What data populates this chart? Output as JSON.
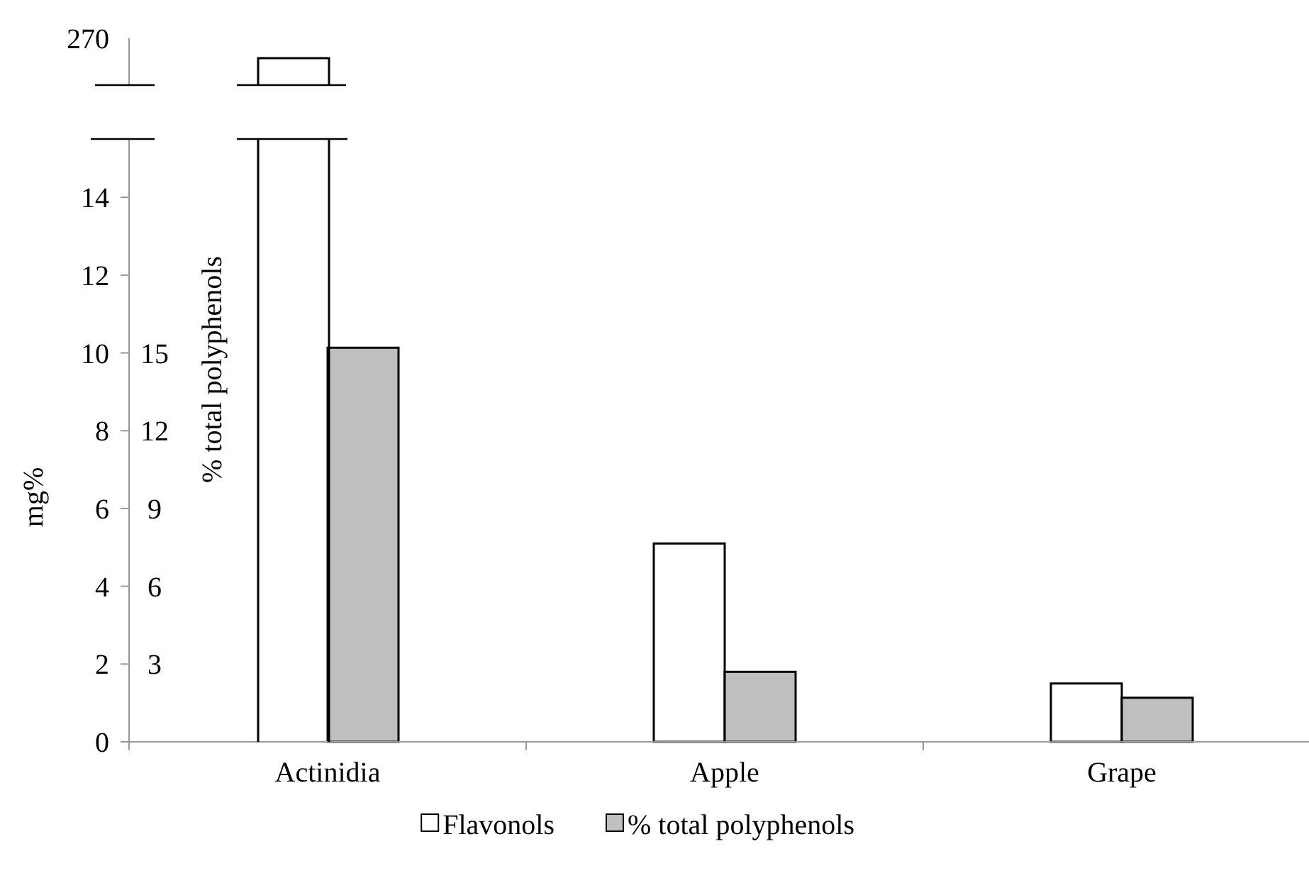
{
  "chart_data": {
    "type": "bar",
    "categories": [
      "Actinidia",
      "Apple",
      "Grape"
    ],
    "ylabel": "mg%",
    "y2label": "% total polyphenols",
    "annotations": [
      "270"
    ],
    "series": [
      {
        "name": "Flavonols",
        "color": "#ffffff",
        "values": [
          null,
          5.1,
          1.5
        ]
      },
      {
        "name": "% total polyphenols",
        "color": "#bfbfbf",
        "axis": "y2",
        "values": [
          15.2,
          2.7,
          1.7
        ]
      }
    ],
    "ylim": [
      0,
      15.5
    ],
    "yticks": [
      0,
      2,
      4,
      6,
      8,
      10,
      12,
      14
    ],
    "y2lim": [
      0,
      23.25
    ],
    "y2ticks": [
      3,
      6,
      9,
      12,
      15
    ],
    "legend": "bottom"
  }
}
